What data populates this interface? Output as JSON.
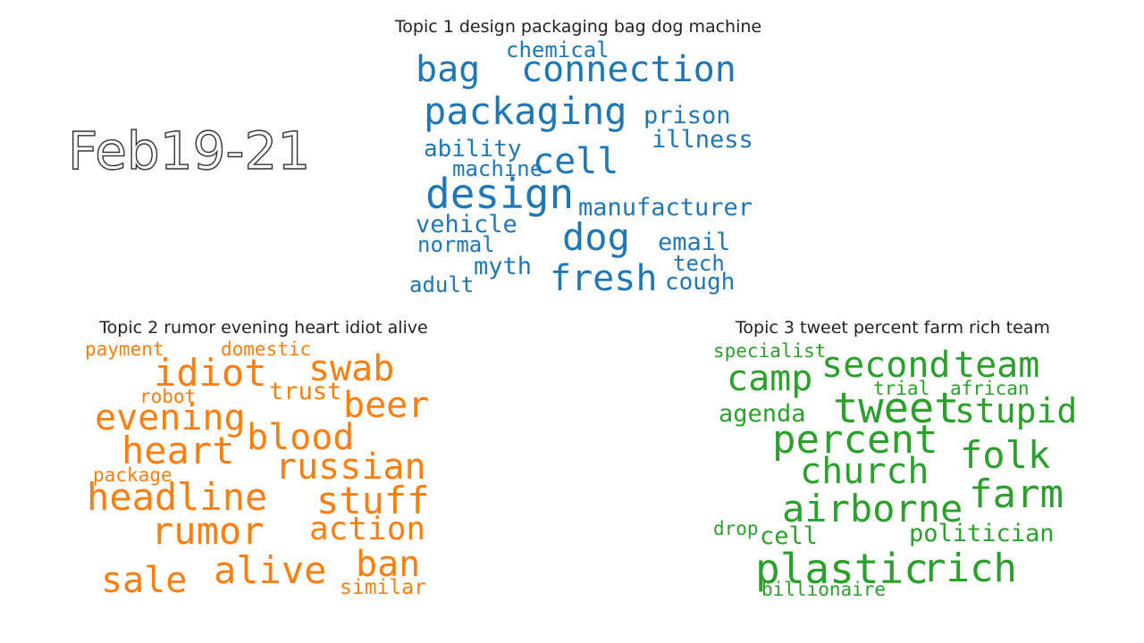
{
  "period_label": "Feb19-21",
  "topics": [
    {
      "title": "Topic 1 design packaging bag dog machine",
      "color": "#1f77b4",
      "words": [
        "chemical",
        "bag",
        "connection",
        "packaging",
        "prison",
        "illness",
        "ability",
        "machine",
        "cell",
        "design",
        "manufacturer",
        "vehicle",
        "dog",
        "email",
        "normal",
        "tech",
        "myth",
        "fresh",
        "cough",
        "adult"
      ]
    },
    {
      "title": "Topic 2 rumor evening heart idiot alive",
      "color": "#ff7f0e",
      "words": [
        "payment",
        "domestic",
        "idiot",
        "swab",
        "robot",
        "trust",
        "beer",
        "evening",
        "blood",
        "heart",
        "russian",
        "package",
        "headline",
        "stuff",
        "rumor",
        "action",
        "ban",
        "alive",
        "sale",
        "similar"
      ]
    },
    {
      "title": "Topic 3 tweet percent farm rich team",
      "color": "#2ca02c",
      "words": [
        "specialist",
        "second",
        "team",
        "camp",
        "trial",
        "african",
        "tweet",
        "stupid",
        "agenda",
        "percent",
        "folk",
        "church",
        "farm",
        "airborne",
        "drop",
        "cell",
        "politician",
        "plastic",
        "rich",
        "billionaire"
      ]
    }
  ]
}
